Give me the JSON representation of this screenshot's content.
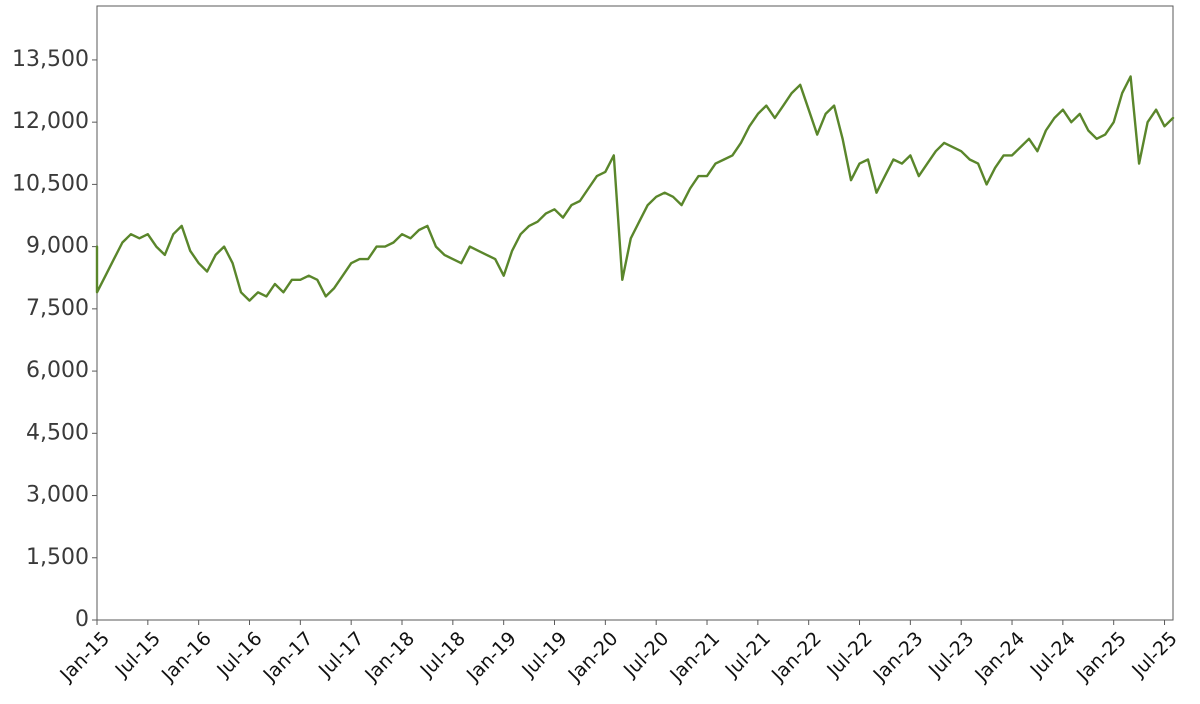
{
  "chart_data": {
    "type": "line",
    "title": "",
    "xlabel": "",
    "ylabel": "",
    "ylim": [
      0,
      14800
    ],
    "grid": false,
    "legend": "none",
    "y_ticks": [
      {
        "value": 0,
        "label": "0"
      },
      {
        "value": 1500,
        "label": "1,500"
      },
      {
        "value": 3000,
        "label": "3,000"
      },
      {
        "value": 4500,
        "label": "4,500"
      },
      {
        "value": 6000,
        "label": "6,000"
      },
      {
        "value": 7500,
        "label": "7,500"
      },
      {
        "value": 9000,
        "label": "9,000"
      },
      {
        "value": 10500,
        "label": "10,500"
      },
      {
        "value": 12000,
        "label": "12,000"
      },
      {
        "value": 13500,
        "label": "13,500"
      }
    ],
    "x_range": [
      "2015-01",
      "2025-08"
    ],
    "x_ticks": [
      "Jan-15",
      "Jul-15",
      "Jan-16",
      "Jul-16",
      "Jan-17",
      "Jul-17",
      "Jan-18",
      "Jul-18",
      "Jan-19",
      "Jul-19",
      "Jan-20",
      "Jul-20",
      "Jan-21",
      "Jul-21",
      "Jan-22",
      "Jul-22",
      "Jan-23",
      "Jul-23",
      "Jan-24",
      "Jul-24",
      "Jan-25",
      "Jul-25"
    ],
    "series": [
      {
        "color": "#5a862b",
        "points": [
          [
            "2015-01",
            9000
          ],
          [
            "2015-01",
            7900
          ],
          [
            "2015-02",
            8300
          ],
          [
            "2015-03",
            8700
          ],
          [
            "2015-04",
            9100
          ],
          [
            "2015-05",
            9300
          ],
          [
            "2015-06",
            9200
          ],
          [
            "2015-07",
            9300
          ],
          [
            "2015-08",
            9000
          ],
          [
            "2015-09",
            8800
          ],
          [
            "2015-10",
            9300
          ],
          [
            "2015-11",
            9500
          ],
          [
            "2015-12",
            8900
          ],
          [
            "2016-01",
            8600
          ],
          [
            "2016-02",
            8400
          ],
          [
            "2016-03",
            8800
          ],
          [
            "2016-04",
            9000
          ],
          [
            "2016-05",
            8600
          ],
          [
            "2016-06",
            7900
          ],
          [
            "2016-07",
            7700
          ],
          [
            "2016-08",
            7900
          ],
          [
            "2016-09",
            7800
          ],
          [
            "2016-10",
            8100
          ],
          [
            "2016-11",
            7900
          ],
          [
            "2016-12",
            8200
          ],
          [
            "2017-01",
            8200
          ],
          [
            "2017-02",
            8300
          ],
          [
            "2017-03",
            8200
          ],
          [
            "2017-04",
            7800
          ],
          [
            "2017-05",
            8000
          ],
          [
            "2017-06",
            8300
          ],
          [
            "2017-07",
            8600
          ],
          [
            "2017-08",
            8700
          ],
          [
            "2017-09",
            8700
          ],
          [
            "2017-10",
            9000
          ],
          [
            "2017-11",
            9000
          ],
          [
            "2017-12",
            9100
          ],
          [
            "2018-01",
            9300
          ],
          [
            "2018-02",
            9200
          ],
          [
            "2018-03",
            9400
          ],
          [
            "2018-04",
            9500
          ],
          [
            "2018-05",
            9000
          ],
          [
            "2018-06",
            8800
          ],
          [
            "2018-07",
            8700
          ],
          [
            "2018-08",
            8600
          ],
          [
            "2018-09",
            9000
          ],
          [
            "2018-10",
            8900
          ],
          [
            "2018-11",
            8800
          ],
          [
            "2018-12",
            8700
          ],
          [
            "2019-01",
            8300
          ],
          [
            "2019-02",
            8900
          ],
          [
            "2019-03",
            9300
          ],
          [
            "2019-04",
            9500
          ],
          [
            "2019-05",
            9600
          ],
          [
            "2019-06",
            9800
          ],
          [
            "2019-07",
            9900
          ],
          [
            "2019-08",
            9700
          ],
          [
            "2019-09",
            10000
          ],
          [
            "2019-10",
            10100
          ],
          [
            "2019-11",
            10400
          ],
          [
            "2019-12",
            10700
          ],
          [
            "2020-01",
            10800
          ],
          [
            "2020-02",
            11200
          ],
          [
            "2020-03",
            8200
          ],
          [
            "2020-04",
            9200
          ],
          [
            "2020-05",
            9600
          ],
          [
            "2020-06",
            10000
          ],
          [
            "2020-07",
            10200
          ],
          [
            "2020-08",
            10300
          ],
          [
            "2020-09",
            10200
          ],
          [
            "2020-10",
            10000
          ],
          [
            "2020-11",
            10400
          ],
          [
            "2020-12",
            10700
          ],
          [
            "2021-01",
            10700
          ],
          [
            "2021-02",
            11000
          ],
          [
            "2021-03",
            11100
          ],
          [
            "2021-04",
            11200
          ],
          [
            "2021-05",
            11500
          ],
          [
            "2021-06",
            11900
          ],
          [
            "2021-07",
            12200
          ],
          [
            "2021-08",
            12400
          ],
          [
            "2021-09",
            12100
          ],
          [
            "2021-10",
            12400
          ],
          [
            "2021-11",
            12700
          ],
          [
            "2021-12",
            12900
          ],
          [
            "2022-01",
            12300
          ],
          [
            "2022-02",
            11700
          ],
          [
            "2022-03",
            12200
          ],
          [
            "2022-04",
            12400
          ],
          [
            "2022-05",
            11600
          ],
          [
            "2022-06",
            10600
          ],
          [
            "2022-07",
            11000
          ],
          [
            "2022-08",
            11100
          ],
          [
            "2022-09",
            10300
          ],
          [
            "2022-10",
            10700
          ],
          [
            "2022-11",
            11100
          ],
          [
            "2022-12",
            11000
          ],
          [
            "2023-01",
            11200
          ],
          [
            "2023-02",
            10700
          ],
          [
            "2023-03",
            11000
          ],
          [
            "2023-04",
            11300
          ],
          [
            "2023-05",
            11500
          ],
          [
            "2023-06",
            11400
          ],
          [
            "2023-07",
            11300
          ],
          [
            "2023-08",
            11100
          ],
          [
            "2023-09",
            11000
          ],
          [
            "2023-10",
            10500
          ],
          [
            "2023-11",
            10900
          ],
          [
            "2023-12",
            11200
          ],
          [
            "2024-01",
            11200
          ],
          [
            "2024-02",
            11400
          ],
          [
            "2024-03",
            11600
          ],
          [
            "2024-04",
            11300
          ],
          [
            "2024-05",
            11800
          ],
          [
            "2024-06",
            12100
          ],
          [
            "2024-07",
            12300
          ],
          [
            "2024-08",
            12000
          ],
          [
            "2024-09",
            12200
          ],
          [
            "2024-10",
            11800
          ],
          [
            "2024-11",
            11600
          ],
          [
            "2024-12",
            11700
          ],
          [
            "2025-01",
            12000
          ],
          [
            "2025-02",
            12700
          ],
          [
            "2025-03",
            13100
          ],
          [
            "2025-04",
            11000
          ],
          [
            "2025-05",
            12000
          ],
          [
            "2025-06",
            12300
          ],
          [
            "2025-07",
            11900
          ],
          [
            "2025-08",
            12100
          ]
        ]
      }
    ]
  }
}
